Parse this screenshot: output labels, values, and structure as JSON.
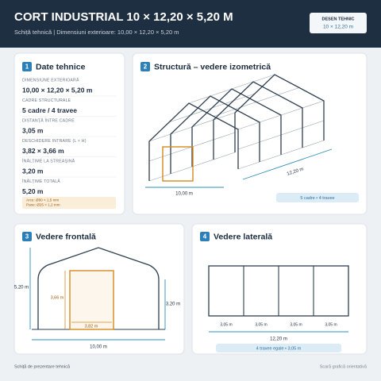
{
  "header": {
    "title": "CORT INDUSTRIAL 10 × 12,20 × 5,20 M",
    "subtitle": "Schiță tehnică | Dimensiuni exterioare: 10,00 × 12,20 × 5,20 m",
    "badge": {
      "label": "DESEN TEHNIC",
      "value": "10 × 12,20 m"
    }
  },
  "panels": [
    {
      "number": "1",
      "title": "Date tehnice",
      "specs": [
        {
          "label": "DIMENSIUNE EXTERIOARĂ",
          "value": "10,00 × 12,20 × 5,20 m"
        },
        {
          "label": "CADRE STRUCTURALE",
          "value": "5 cadre / 4 travee"
        },
        {
          "label": "DISTANȚĂ ÎNTRE CADRE",
          "value": "3,05 m"
        },
        {
          "label": "DESCHIDERE INTRARE (L × H)",
          "value": "3,82 × 3,66 m"
        },
        {
          "label": "ÎNĂLȚIME LA STREAȘINĂ",
          "value": "3,20 m"
        },
        {
          "label": "ÎNĂLȚIME TOTALĂ",
          "value": "5,20 m"
        }
      ],
      "notes": [
        "Arce: Ø80 × 1,5 mm",
        "Pane: Ø25 × 1,2 mm"
      ]
    },
    {
      "number": "2",
      "title": "Structură – vedere izometrică",
      "width": "10,00 m",
      "depth": "12,20 m",
      "badge": "5 cadre • 4 travee"
    },
    {
      "number": "3",
      "title": "Vedere frontală",
      "total_height": "5,20 m",
      "door_height": "3,66 m",
      "door_width": "3,82 m",
      "eave_height": "3,20 m",
      "width": "10,00 m"
    },
    {
      "number": "4",
      "title": "Vedere laterală",
      "bays": [
        "3,05 m",
        "3,05 m",
        "3,05 m",
        "3,05 m"
      ],
      "length": "12,20 m",
      "badge": "4 travee egale • 3,05 m"
    }
  ],
  "footer": {
    "left": "Schiță de prezentare tehnică",
    "right": "Scară grafică orientativă"
  }
}
